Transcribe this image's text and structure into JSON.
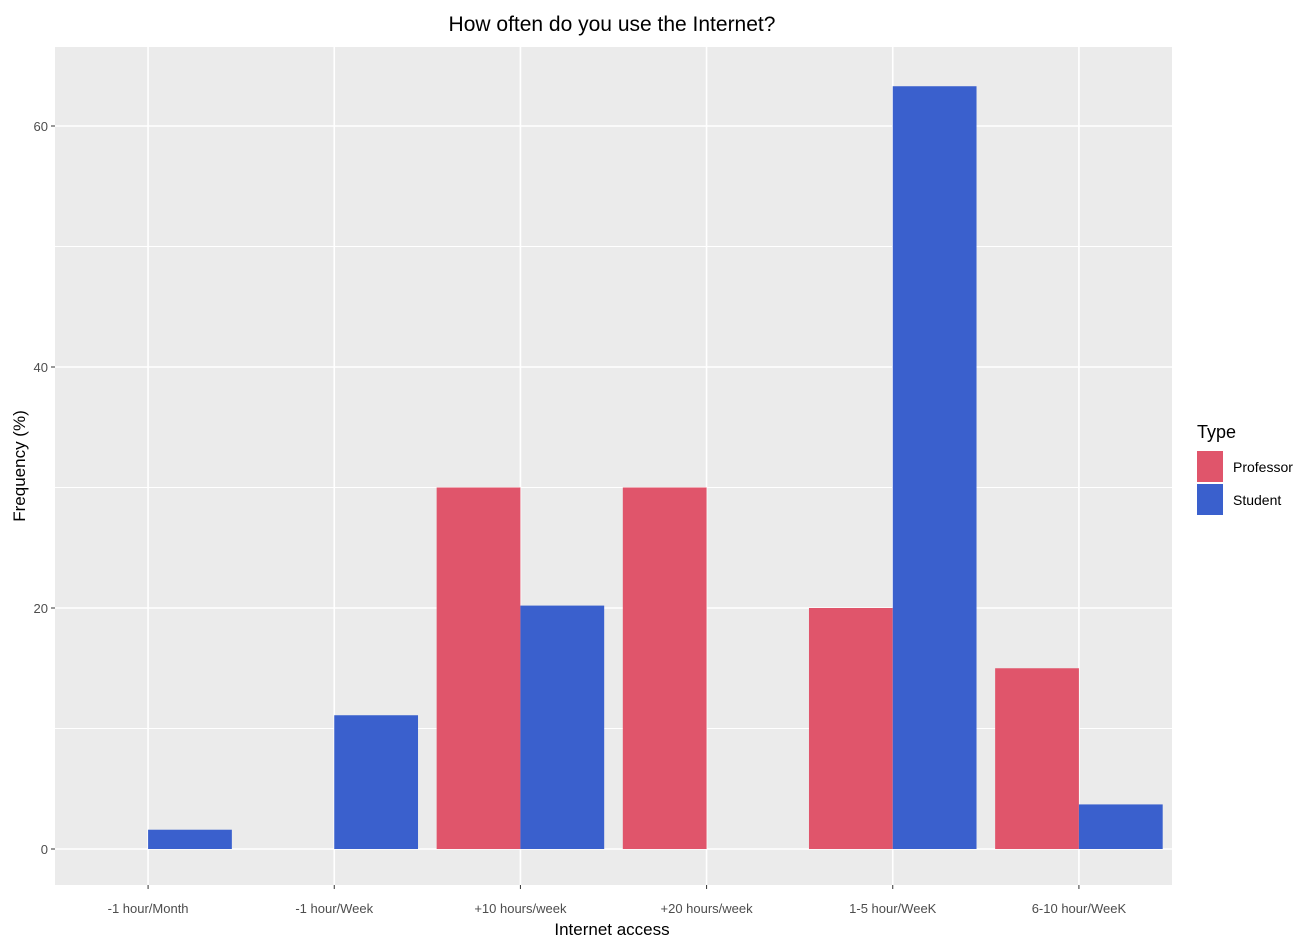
{
  "chart_data": {
    "type": "bar",
    "title": "How often do you use the Internet?",
    "xlabel": "Internet access",
    "ylabel": "Frequency (%)",
    "categories": [
      "-1 hour/Month",
      "-1 hour/Week",
      "+10 hours/week",
      "+20 hours/week",
      "1-5 hour/WeeK",
      "6-10 hour/WeeK"
    ],
    "series": [
      {
        "name": "Professor",
        "color": "#e0556b",
        "values": [
          0,
          0,
          30,
          30,
          20,
          15
        ]
      },
      {
        "name": "Student",
        "color": "#3a60cd",
        "values": [
          1.6,
          11.1,
          20.2,
          0,
          63.3,
          3.7
        ]
      }
    ],
    "ylim": [
      -3.2,
      66.5
    ],
    "yticks": [
      0,
      20,
      40,
      60
    ],
    "grid": true,
    "legend": {
      "title": "Type",
      "position": "right"
    },
    "panel_color": "#ebebeb"
  }
}
